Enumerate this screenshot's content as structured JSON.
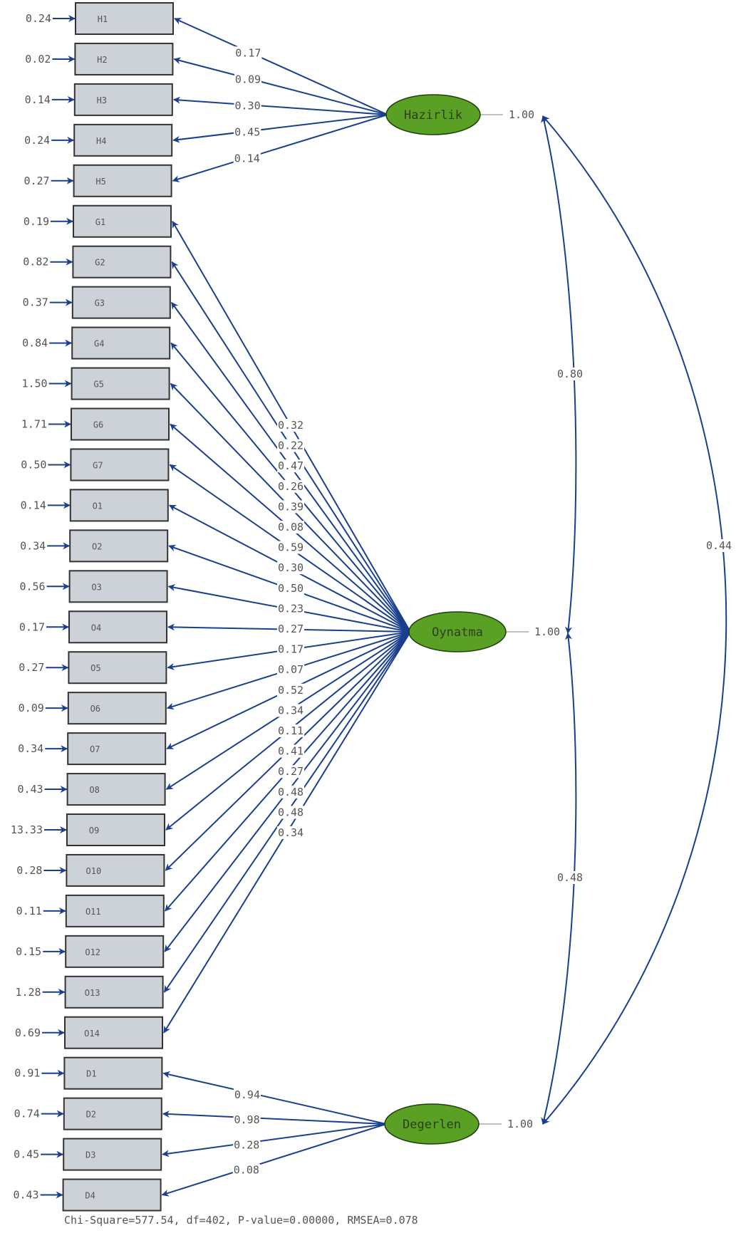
{
  "observed": [
    {
      "id": "H1",
      "error": "0.24",
      "loading": "0.17",
      "factor": 0
    },
    {
      "id": "H2",
      "error": "0.02",
      "loading": "0.09",
      "factor": 0
    },
    {
      "id": "H3",
      "error": "0.14",
      "loading": "0.30",
      "factor": 0
    },
    {
      "id": "H4",
      "error": "0.24",
      "loading": "0.45",
      "factor": 0
    },
    {
      "id": "H5",
      "error": "0.27",
      "loading": "0.14",
      "factor": 0
    },
    {
      "id": "G1",
      "error": "0.19",
      "loading": "0.32",
      "factor": 1
    },
    {
      "id": "G2",
      "error": "0.82",
      "loading": "0.22",
      "factor": 1
    },
    {
      "id": "G3",
      "error": "0.37",
      "loading": "0.47",
      "factor": 1
    },
    {
      "id": "G4",
      "error": "0.84",
      "loading": "0.26",
      "factor": 1
    },
    {
      "id": "G5",
      "error": "1.50",
      "loading": "0.39",
      "factor": 1
    },
    {
      "id": "G6",
      "error": "1.71",
      "loading": "0.08",
      "factor": 1
    },
    {
      "id": "G7",
      "error": "0.50",
      "loading": "0.59",
      "factor": 1
    },
    {
      "id": "O1",
      "error": "0.14",
      "loading": "0.30",
      "factor": 1
    },
    {
      "id": "O2",
      "error": "0.34",
      "loading": "0.50",
      "factor": 1
    },
    {
      "id": "O3",
      "error": "0.56",
      "loading": "0.23",
      "factor": 1
    },
    {
      "id": "O4",
      "error": "0.17",
      "loading": "0.27",
      "factor": 1
    },
    {
      "id": "O5",
      "error": "0.27",
      "loading": "0.17",
      "factor": 1
    },
    {
      "id": "O6",
      "error": "0.09",
      "loading": "0.07",
      "factor": 1
    },
    {
      "id": "O7",
      "error": "0.34",
      "loading": "0.52",
      "factor": 1
    },
    {
      "id": "O8",
      "error": "0.43",
      "loading": "0.34",
      "factor": 1
    },
    {
      "id": "O9",
      "error": "13.33",
      "loading": "0.11",
      "factor": 1
    },
    {
      "id": "O10",
      "error": "0.28",
      "loading": "0.41",
      "factor": 1
    },
    {
      "id": "O11",
      "error": "0.11",
      "loading": "0.27",
      "factor": 1
    },
    {
      "id": "O12",
      "error": "0.15",
      "loading": "0.48",
      "factor": 1
    },
    {
      "id": "O13",
      "error": "1.28",
      "loading": "0.48",
      "factor": 1
    },
    {
      "id": "O14",
      "error": "0.69",
      "loading": "0.34",
      "factor": 1
    },
    {
      "id": "D1",
      "error": "0.91",
      "loading": "0.94",
      "factor": 2
    },
    {
      "id": "D2",
      "error": "0.74",
      "loading": "0.98",
      "factor": 2
    },
    {
      "id": "D3",
      "error": "0.45",
      "loading": "0.28",
      "factor": 2
    },
    {
      "id": "D4",
      "error": "0.43",
      "loading": "0.08",
      "factor": 2
    }
  ],
  "latents": [
    {
      "name": "Hazirlik",
      "variance": "1.00"
    },
    {
      "name": "Oynatma",
      "variance": "1.00"
    },
    {
      "name": "Degerlen",
      "variance": "1.00"
    }
  ],
  "correlations": [
    {
      "from": 0,
      "to": 1,
      "value": "0.80"
    },
    {
      "from": 1,
      "to": 2,
      "value": "0.48"
    },
    {
      "from": 0,
      "to": 2,
      "value": "0.44"
    }
  ],
  "footer": "Chi-Square=577.54, df=402, P-value=0.00000, RMSEA=0.078",
  "colors": {
    "path": "#1a3f8f",
    "latent_fill": "#5aa025",
    "box_fill": "#cdd1d8"
  }
}
